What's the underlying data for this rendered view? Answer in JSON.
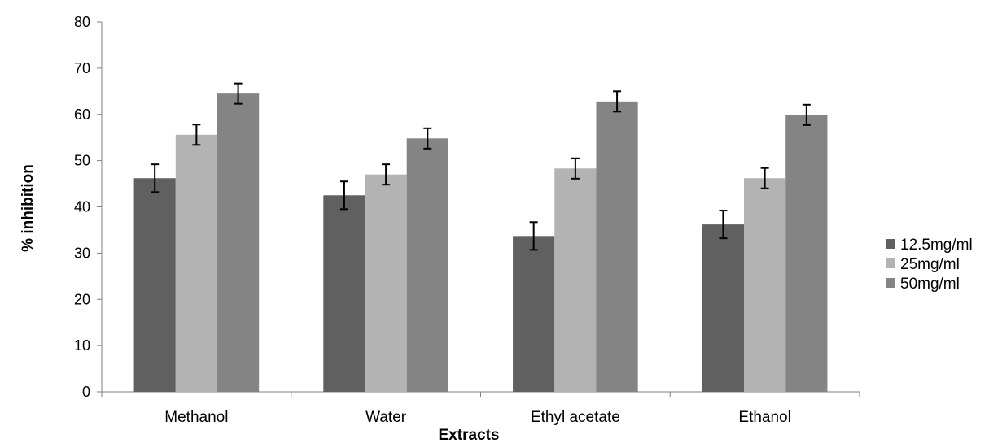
{
  "chart_data": {
    "type": "bar",
    "xlabel": "Extracts",
    "ylabel": "% inhibition",
    "ylim": [
      0,
      80
    ],
    "yticks": [
      0,
      10,
      20,
      30,
      40,
      50,
      60,
      70,
      80
    ],
    "grid": false,
    "legend_position": "right",
    "categories": [
      "Methanol",
      "Water",
      "Ethyl acetate",
      "Ethanol"
    ],
    "series": [
      {
        "name": "12.5mg/ml",
        "color": "#606060",
        "values": [
          46.2,
          42.5,
          33.7,
          36.2
        ],
        "errors": [
          3.0,
          3.0,
          3.0,
          3.0
        ]
      },
      {
        "name": "25mg/ml",
        "color": "#b3b3b3",
        "values": [
          55.6,
          47.0,
          48.3,
          46.2
        ],
        "errors": [
          2.2,
          2.2,
          2.2,
          2.2
        ]
      },
      {
        "name": "50mg/ml",
        "color": "#848484",
        "values": [
          64.5,
          54.8,
          62.8,
          59.9
        ],
        "errors": [
          2.2,
          2.2,
          2.2,
          2.2
        ]
      }
    ]
  }
}
